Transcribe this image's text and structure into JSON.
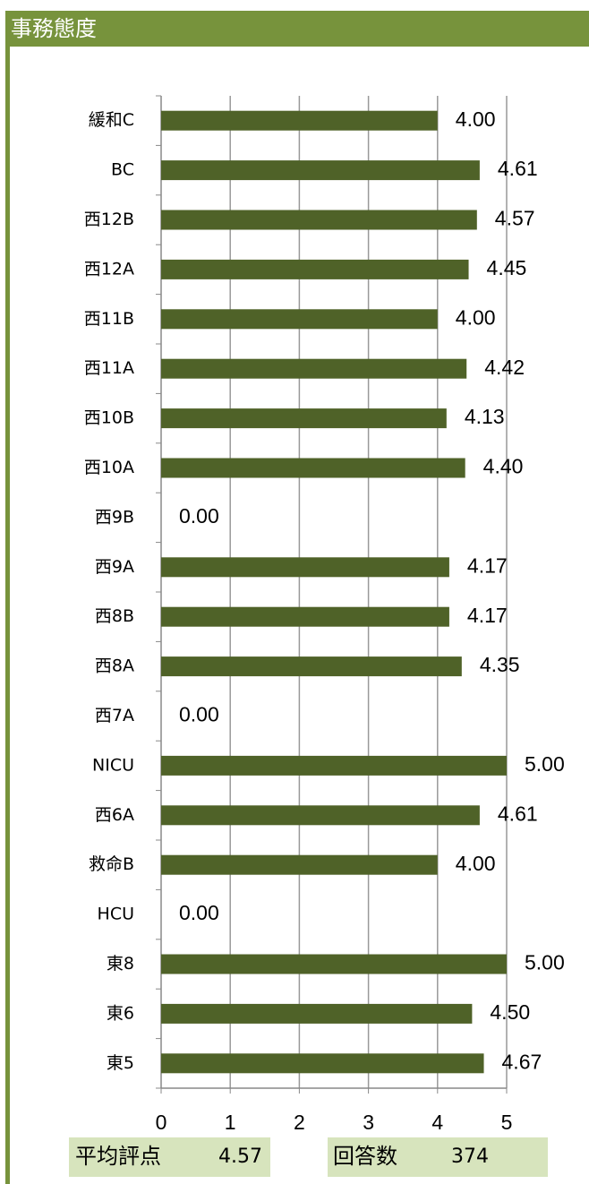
{
  "chart_data": {
    "type": "bar",
    "orientation": "horizontal",
    "title": "事務態度",
    "categories": [
      "緩和C",
      "BC",
      "西12B",
      "西12A",
      "西11B",
      "西11A",
      "西10B",
      "西10A",
      "西9B",
      "西9A",
      "西8B",
      "西8A",
      "西7A",
      "NICU",
      "西6A",
      "救命B",
      "HCU",
      "東8",
      "東6",
      "東5"
    ],
    "values": [
      4.0,
      4.61,
      4.57,
      4.45,
      4.0,
      4.42,
      4.13,
      4.4,
      0.0,
      4.17,
      4.17,
      4.35,
      0.0,
      5.0,
      4.61,
      4.0,
      0.0,
      5.0,
      4.5,
      4.67
    ],
    "value_labels": [
      "4.00",
      "4.61",
      "4.57",
      "4.45",
      "4.00",
      "4.42",
      "4.13",
      "4.40",
      "0.00",
      "4.17",
      "4.17",
      "4.35",
      "0.00",
      "5.00",
      "4.61",
      "4.00",
      "0.00",
      "5.00",
      "4.50",
      "4.67"
    ],
    "color": "#4f6228",
    "xlim": [
      0,
      5
    ],
    "xticks": [
      0,
      1,
      2,
      3,
      4,
      5
    ],
    "grid": true
  },
  "summary": {
    "average_label": "平均評点",
    "average": 4.57,
    "count_label": "回答数",
    "count": 374
  }
}
